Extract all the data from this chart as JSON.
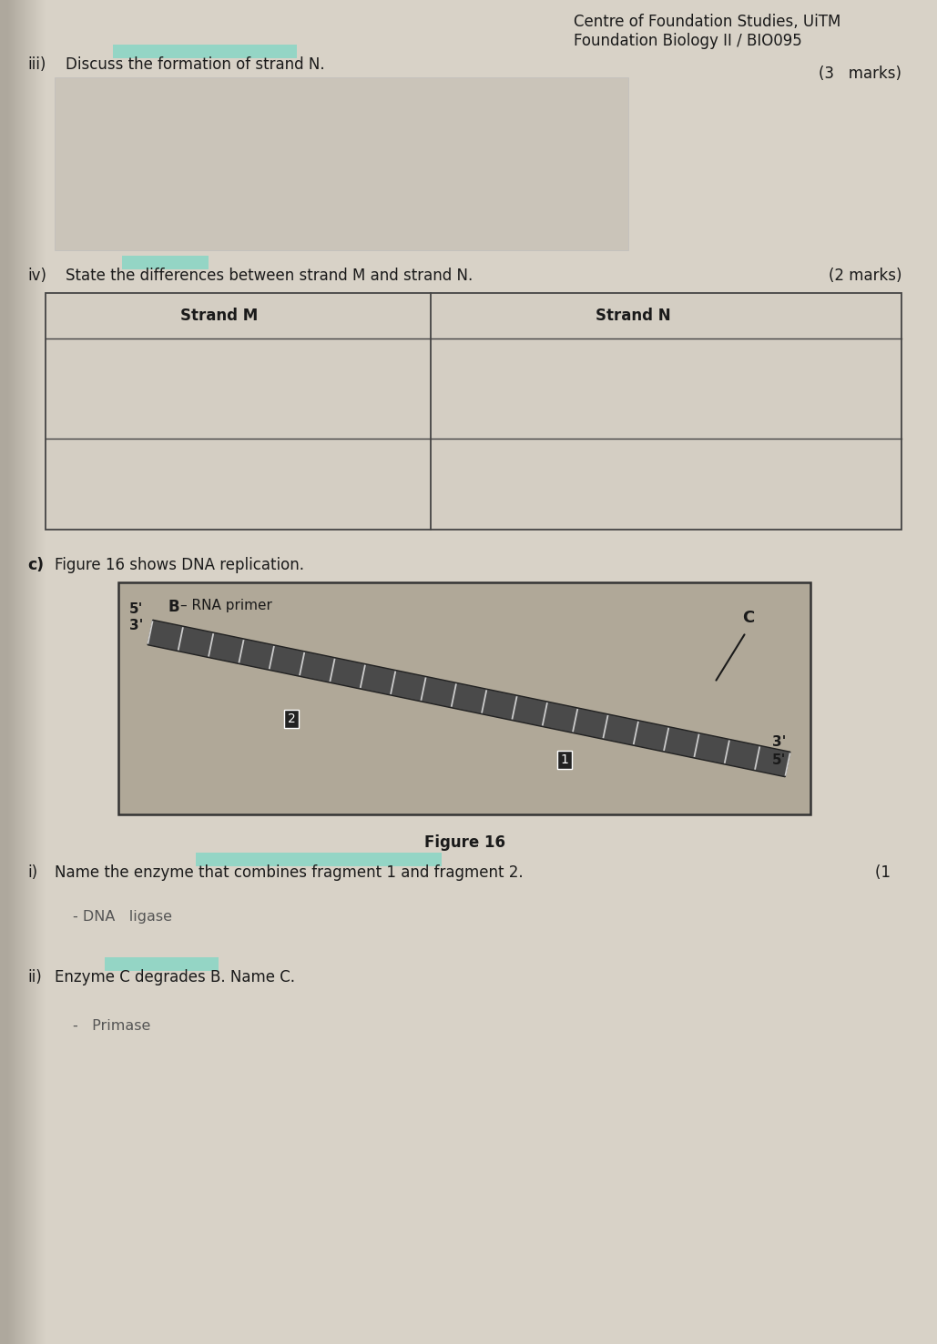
{
  "bg_color": "#cdc7bc",
  "page_color": "#d8d2c7",
  "header_right_line1": "Centre of Foundation Studies, UiTM",
  "header_right_line2": "Foundation Biology II / BIO095",
  "q_iii_label": "iii)",
  "q_iii_text": "Discuss the formation of strand N.",
  "q_iii_marks": "(3   marks)",
  "q_iv_label": "iv)",
  "q_iv_text_pre": "State the ",
  "q_iv_text_hl": "differences",
  "q_iv_text_post": " between strand – and strand N.",
  "q_iv_text_full": "State the differences between strand M and strand N.",
  "q_iv_marks": "(2 marks)",
  "table_col1": "Strand M",
  "table_col2": "Strand N",
  "q_c_label": "c)",
  "q_c_text": "Figure 16 shows DNA replication.",
  "fig_label": "Figure 16",
  "q_ci_label": "i)",
  "q_ci_text": "Name the enzyme that combines fragment 1 and fragment 2.",
  "q_ci_marks": "(1  ",
  "q_ci_answer": "- DNA   ligase",
  "q_cii_label": "ii)",
  "q_cii_text": "Enzyme C degrades B. Name C.",
  "q_cii_answer": "-   Primase",
  "highlight_color": "#5dd8c4",
  "text_color": "#1a1a1a",
  "bold_text": "#111111",
  "answer_color": "#555555",
  "table_bg": "#d4cec3",
  "fig_bg": "#b0a898"
}
